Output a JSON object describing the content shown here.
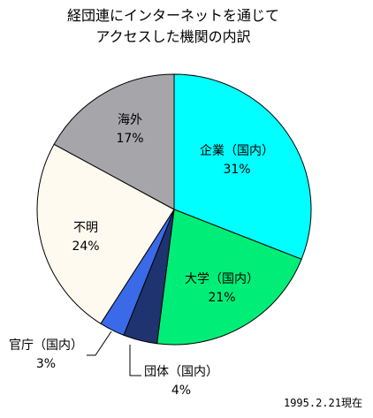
{
  "chart_data": {
    "type": "pie",
    "title_lines": [
      "経団連にインターネットを通じて",
      "アクセスした機関の内訳"
    ],
    "slices": [
      {
        "label": "企業（国内）",
        "value": 31,
        "value_text": "31%",
        "color": "#00ffff"
      },
      {
        "label": "大学（国内）",
        "value": 21,
        "value_text": "21%",
        "color": "#00ee77"
      },
      {
        "label": "団体（国内）",
        "value": 4,
        "value_text": "4%",
        "color": "#1e3370"
      },
      {
        "label": "官庁（国内）",
        "value": 3,
        "value_text": "3%",
        "color": "#3a6ae8"
      },
      {
        "label": "不明",
        "value": 24,
        "value_text": "24%",
        "color": "#fffaef"
      },
      {
        "label": "海外",
        "value": 17,
        "value_text": "17%",
        "color": "#a6a6aa"
      }
    ],
    "footnote": "1995.2.21現在"
  }
}
